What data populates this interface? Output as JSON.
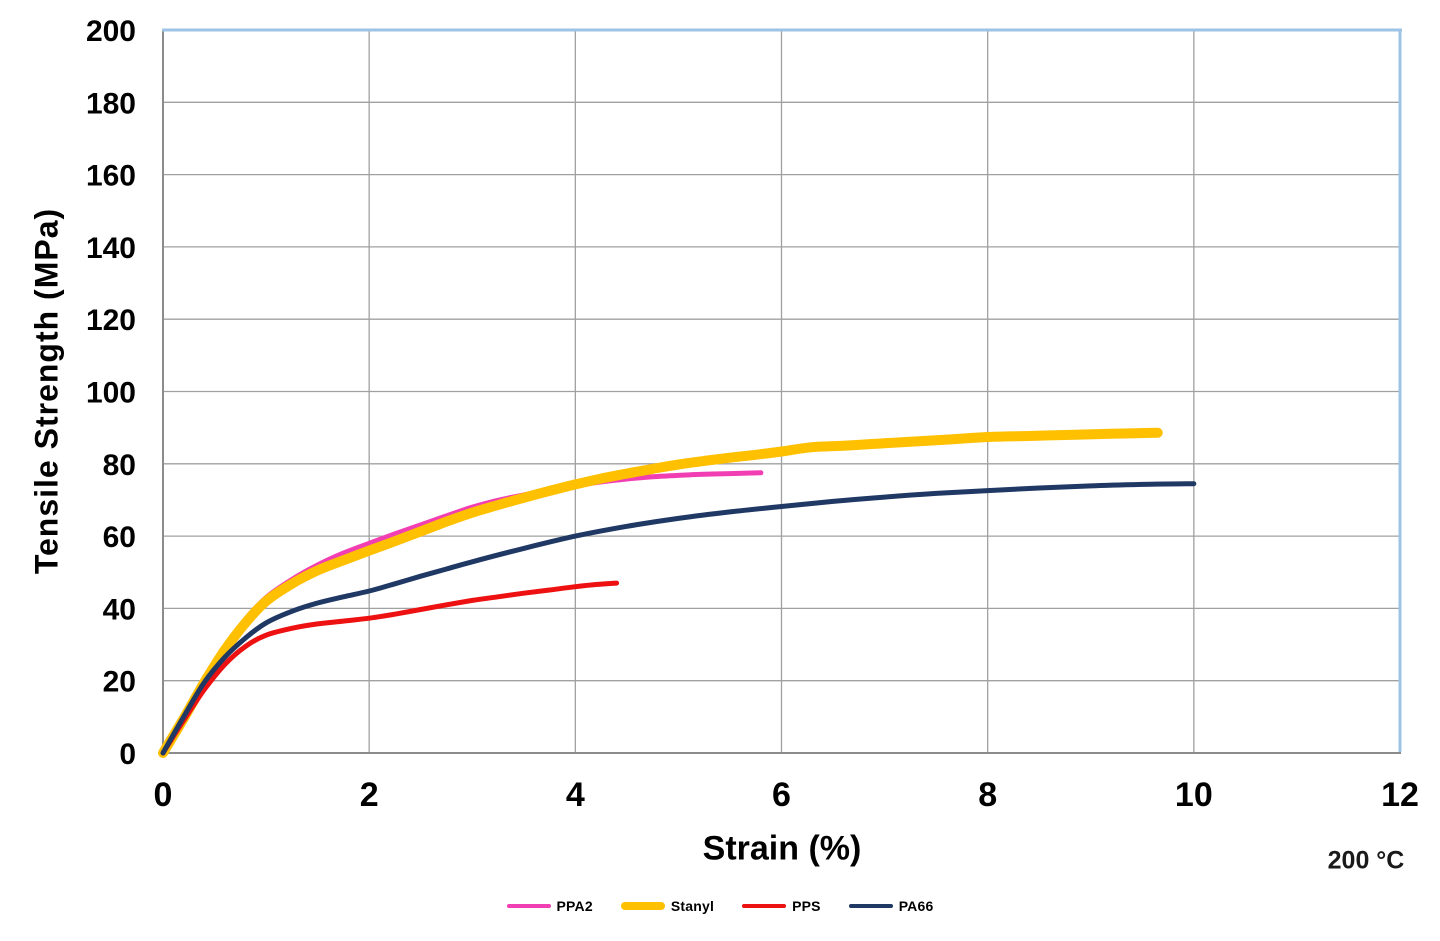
{
  "chart_data": {
    "type": "line",
    "title": "",
    "xlabel": "Strain (%)",
    "ylabel": "Tensile Strength (MPa)",
    "annotation": "200 °C",
    "xlim": [
      0,
      12
    ],
    "ylim": [
      0,
      200
    ],
    "xticks": [
      0,
      2,
      4,
      6,
      8,
      10,
      12
    ],
    "yticks": [
      0,
      20,
      40,
      60,
      80,
      100,
      120,
      140,
      160,
      180,
      200
    ],
    "grid": true,
    "legend_position": "bottom",
    "series": [
      {
        "name": "PPA2",
        "color": "#F23EB3",
        "width": 5,
        "points": [
          [
            0,
            0
          ],
          [
            0.2,
            10
          ],
          [
            0.4,
            20.5
          ],
          [
            0.6,
            29.5
          ],
          [
            0.8,
            37
          ],
          [
            1,
            43
          ],
          [
            1.25,
            48
          ],
          [
            1.5,
            52
          ],
          [
            1.75,
            55.3
          ],
          [
            2,
            58
          ],
          [
            2.25,
            60.6
          ],
          [
            2.5,
            63.1
          ],
          [
            2.75,
            65.6
          ],
          [
            3,
            68
          ],
          [
            3.25,
            69.9
          ],
          [
            3.5,
            71.4
          ],
          [
            3.75,
            72.8
          ],
          [
            4,
            74
          ],
          [
            4.25,
            75
          ],
          [
            4.5,
            75.8
          ],
          [
            4.75,
            76.4
          ],
          [
            5,
            76.8
          ],
          [
            5.25,
            77.1
          ],
          [
            5.5,
            77.3
          ],
          [
            5.8,
            77.5
          ]
        ]
      },
      {
        "name": "Stanyl",
        "color": "#FFC000",
        "width": 10,
        "points": [
          [
            0,
            0
          ],
          [
            0.2,
            9.5
          ],
          [
            0.4,
            19.5
          ],
          [
            0.6,
            28.5
          ],
          [
            0.8,
            36
          ],
          [
            1,
            42
          ],
          [
            1.25,
            46.8
          ],
          [
            1.5,
            50.5
          ],
          [
            1.75,
            53.3
          ],
          [
            2,
            56
          ],
          [
            2.25,
            58.6
          ],
          [
            2.5,
            61.3
          ],
          [
            2.75,
            64
          ],
          [
            3,
            66.5
          ],
          [
            3.25,
            68.6
          ],
          [
            3.5,
            70.6
          ],
          [
            3.75,
            72.5
          ],
          [
            4,
            74.3
          ],
          [
            4.25,
            75.9
          ],
          [
            4.5,
            77.3
          ],
          [
            4.75,
            78.6
          ],
          [
            5,
            79.8
          ],
          [
            5.25,
            80.8
          ],
          [
            5.5,
            81.7
          ],
          [
            5.75,
            82.5
          ],
          [
            6,
            83.4
          ],
          [
            6.3,
            84.6
          ],
          [
            6.6,
            85
          ],
          [
            7,
            85.7
          ],
          [
            7.5,
            86.5
          ],
          [
            8,
            87.4
          ],
          [
            8.4,
            87.7
          ],
          [
            8.8,
            88
          ],
          [
            9.2,
            88.3
          ],
          [
            9.65,
            88.6
          ]
        ]
      },
      {
        "name": "PPS",
        "color": "#EE1111",
        "width": 5,
        "points": [
          [
            0,
            0
          ],
          [
            0.2,
            9
          ],
          [
            0.4,
            17.5
          ],
          [
            0.6,
            24.5
          ],
          [
            0.8,
            29.5
          ],
          [
            1,
            32.6
          ],
          [
            1.25,
            34.5
          ],
          [
            1.5,
            35.7
          ],
          [
            1.75,
            36.5
          ],
          [
            2,
            37.3
          ],
          [
            2.25,
            38.4
          ],
          [
            2.5,
            39.7
          ],
          [
            2.75,
            41
          ],
          [
            3,
            42.2
          ],
          [
            3.25,
            43.2
          ],
          [
            3.5,
            44.2
          ],
          [
            3.75,
            45.1
          ],
          [
            4,
            46
          ],
          [
            4.2,
            46.6
          ],
          [
            4.4,
            47
          ]
        ]
      },
      {
        "name": "PA66",
        "color": "#1F3864",
        "width": 5,
        "points": [
          [
            0,
            0
          ],
          [
            0.2,
            10
          ],
          [
            0.4,
            19.5
          ],
          [
            0.6,
            26.5
          ],
          [
            0.8,
            31.8
          ],
          [
            1,
            36
          ],
          [
            1.25,
            39.2
          ],
          [
            1.5,
            41.5
          ],
          [
            1.75,
            43.2
          ],
          [
            2,
            44.8
          ],
          [
            2.25,
            46.8
          ],
          [
            2.5,
            48.9
          ],
          [
            2.75,
            50.9
          ],
          [
            3,
            52.9
          ],
          [
            3.5,
            56.6
          ],
          [
            4,
            60
          ],
          [
            4.5,
            62.7
          ],
          [
            5,
            64.9
          ],
          [
            5.5,
            66.7
          ],
          [
            6,
            68.2
          ],
          [
            6.5,
            69.6
          ],
          [
            7,
            70.8
          ],
          [
            7.5,
            71.8
          ],
          [
            8,
            72.6
          ],
          [
            8.5,
            73.3
          ],
          [
            9,
            73.9
          ],
          [
            9.5,
            74.3
          ],
          [
            10,
            74.5
          ]
        ]
      }
    ],
    "colors": {
      "gridline": "#A0A0A0",
      "axis_gray": "#8C8C8C",
      "border_blue": "#9DC3E6",
      "text": "#000000"
    }
  }
}
